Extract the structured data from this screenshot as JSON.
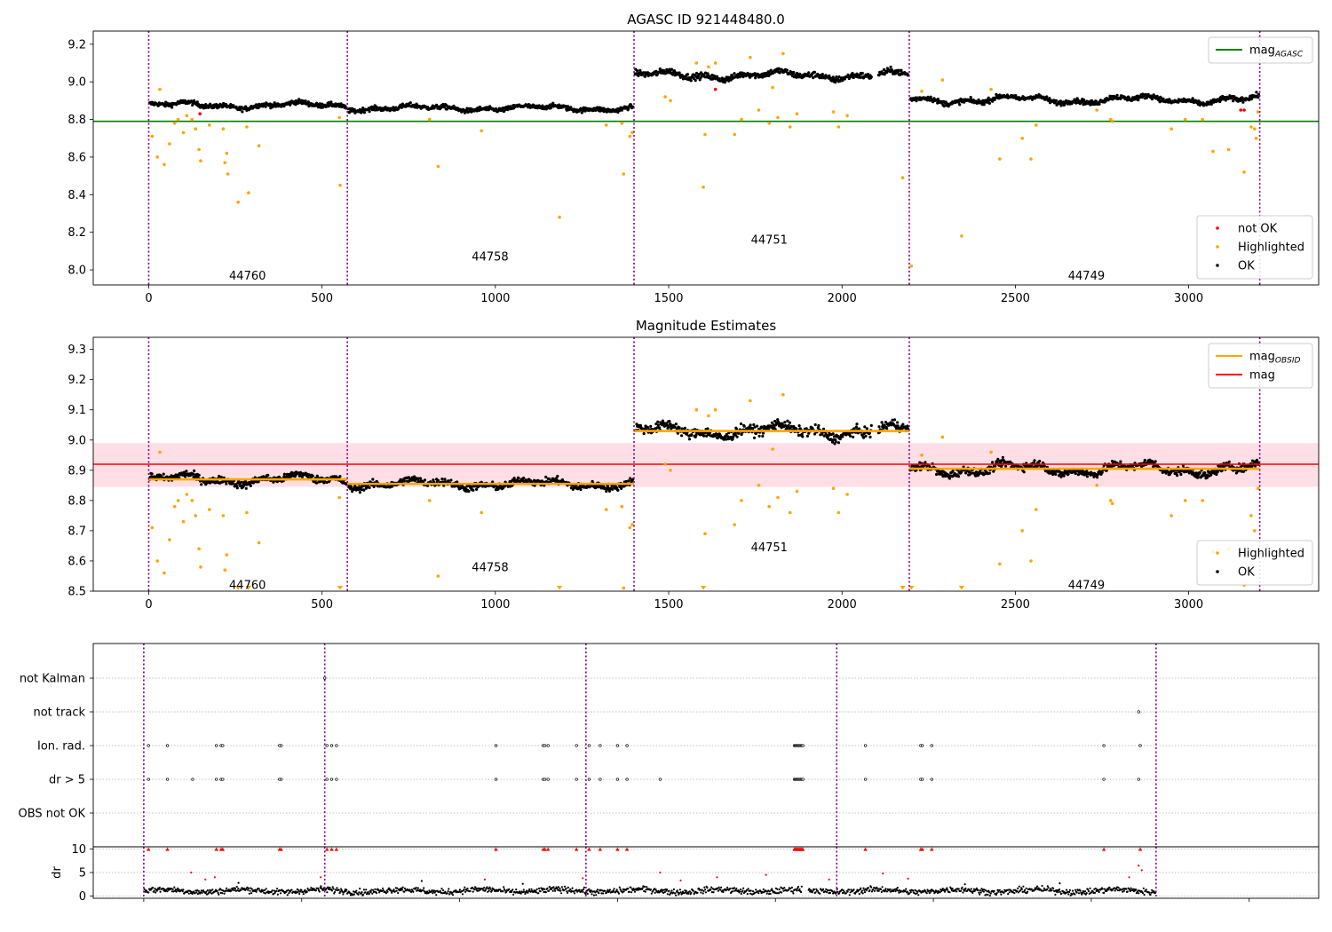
{
  "chart_data": [
    {
      "id": "p1",
      "type": "scatter",
      "title": "AGASC ID 921448480.0",
      "xlim": [
        -160,
        3375
      ],
      "ylim": [
        7.92,
        9.27
      ],
      "xticks": [
        0,
        500,
        1000,
        1500,
        2000,
        2500,
        3000,
        3500
      ],
      "yticks": [
        8.0,
        8.2,
        8.4,
        8.6,
        8.8,
        9.0,
        9.2
      ],
      "ytick_labels": [
        "8.0",
        "8.2",
        "8.4",
        "8.6",
        "8.8",
        "9.0",
        "9.2"
      ],
      "obs_boundaries": [
        0,
        573,
        1400,
        2194,
        3205
      ],
      "obsid_labels": [
        {
          "text": "44760",
          "x": 285,
          "y": 7.97
        },
        {
          "text": "44758",
          "x": 985,
          "y": 8.07
        },
        {
          "text": "44751",
          "x": 1790,
          "y": 8.16
        },
        {
          "text": "44749",
          "x": 2705,
          "y": 7.97
        }
      ],
      "ok_segments": [
        {
          "x0": 0,
          "x1": 573,
          "base": 8.875,
          "amp": 0.012,
          "noise": 0.012
        },
        {
          "x0": 573,
          "x1": 1400,
          "base": 8.86,
          "amp": 0.01,
          "noise": 0.012
        },
        {
          "x0": 1400,
          "x1": 2194,
          "base": 9.035,
          "amp": 0.015,
          "noise": 0.016
        },
        {
          "x0": 2194,
          "x1": 3205,
          "base": 8.905,
          "amp": 0.015,
          "noise": 0.013
        }
      ],
      "highlighted": [
        [
          10,
          8.71
        ],
        [
          25,
          8.6
        ],
        [
          32,
          8.96
        ],
        [
          45,
          8.56
        ],
        [
          60,
          8.67
        ],
        [
          75,
          8.78
        ],
        [
          85,
          8.8
        ],
        [
          100,
          8.73
        ],
        [
          110,
          8.82
        ],
        [
          125,
          8.8
        ],
        [
          135,
          8.75
        ],
        [
          145,
          8.64
        ],
        [
          150,
          8.58
        ],
        [
          175,
          8.77
        ],
        [
          215,
          8.75
        ],
        [
          220,
          8.57
        ],
        [
          225,
          8.62
        ],
        [
          228,
          8.51
        ],
        [
          258,
          8.36
        ],
        [
          283,
          8.76
        ],
        [
          288,
          8.41
        ],
        [
          318,
          8.66
        ],
        [
          550,
          8.81
        ],
        [
          552,
          8.45
        ],
        [
          810,
          8.8
        ],
        [
          835,
          8.55
        ],
        [
          960,
          8.74
        ],
        [
          1185,
          8.28
        ],
        [
          1320,
          8.77
        ],
        [
          1365,
          8.78
        ],
        [
          1370,
          8.51
        ],
        [
          1388,
          8.71
        ],
        [
          1395,
          8.73
        ],
        [
          1490,
          8.92
        ],
        [
          1505,
          8.9
        ],
        [
          1580,
          9.1
        ],
        [
          1600,
          8.44
        ],
        [
          1605,
          8.72
        ],
        [
          1615,
          9.08
        ],
        [
          1635,
          9.1
        ],
        [
          1690,
          8.72
        ],
        [
          1710,
          8.8
        ],
        [
          1735,
          9.13
        ],
        [
          1760,
          8.85
        ],
        [
          1790,
          8.78
        ],
        [
          1800,
          8.97
        ],
        [
          1815,
          8.81
        ],
        [
          1830,
          9.15
        ],
        [
          1850,
          8.76
        ],
        [
          1870,
          8.83
        ],
        [
          1975,
          8.84
        ],
        [
          1990,
          8.76
        ],
        [
          2015,
          8.82
        ],
        [
          2175,
          8.49
        ],
        [
          2200,
          8.02
        ],
        [
          2230,
          8.95
        ],
        [
          2290,
          9.01
        ],
        [
          2345,
          8.18
        ],
        [
          2430,
          8.96
        ],
        [
          2455,
          8.59
        ],
        [
          2520,
          8.7
        ],
        [
          2545,
          8.59
        ],
        [
          2560,
          8.77
        ],
        [
          2735,
          8.85
        ],
        [
          2775,
          8.8
        ],
        [
          2780,
          8.79
        ],
        [
          2950,
          8.75
        ],
        [
          2990,
          8.8
        ],
        [
          3040,
          8.8
        ],
        [
          3070,
          8.63
        ],
        [
          3115,
          8.64
        ],
        [
          3160,
          8.52
        ],
        [
          3180,
          8.76
        ],
        [
          3190,
          8.75
        ],
        [
          3195,
          8.7
        ],
        [
          3200,
          8.84
        ]
      ],
      "not_ok": [
        [
          148,
          8.83
        ],
        [
          1635,
          8.96
        ],
        [
          3150,
          8.85
        ],
        [
          3160,
          8.85
        ]
      ],
      "hlines": [
        {
          "name": "mag_AGASC",
          "y": 8.79,
          "x0": -160,
          "x1": 3375,
          "color": "#008000"
        }
      ],
      "legends": [
        {
          "position": "upper-right",
          "entries": [
            {
              "kind": "line",
              "color": "#008000",
              "text": "mag",
              "sub": "AGASC"
            }
          ]
        },
        {
          "position": "lower-right",
          "entries": [
            {
              "kind": "dot",
              "color": "#ff0000",
              "text": "not OK"
            },
            {
              "kind": "dot",
              "color": "#ffa500",
              "text": "Highlighted"
            },
            {
              "kind": "dot",
              "color": "#000000",
              "text": "OK"
            }
          ]
        }
      ]
    },
    {
      "id": "p2",
      "type": "scatter",
      "title": "Magnitude Estimates",
      "xlim": [
        -160,
        3375
      ],
      "ylim": [
        8.5,
        9.34
      ],
      "xticks": [
        0,
        500,
        1000,
        1500,
        2000,
        2500,
        3000,
        3500
      ],
      "yticks": [
        8.5,
        8.6,
        8.7,
        8.8,
        8.9,
        9.0,
        9.1,
        9.2,
        9.3
      ],
      "ytick_labels": [
        "8.5",
        "8.6",
        "8.7",
        "8.8",
        "8.9",
        "9.0",
        "9.1",
        "9.2",
        "9.3"
      ],
      "obs_boundaries": [
        0,
        573,
        1400,
        2194,
        3205
      ],
      "obsid_labels": [
        {
          "text": "44760",
          "x": 285,
          "y": 8.52
        },
        {
          "text": "44758",
          "x": 985,
          "y": 8.58
        },
        {
          "text": "44751",
          "x": 1790,
          "y": 8.645
        },
        {
          "text": "44749",
          "x": 2705,
          "y": 8.52
        }
      ],
      "band": {
        "y0": 8.845,
        "y1": 8.99,
        "x0": -160,
        "x1": 3375,
        "color": "#ffc0cb"
      },
      "ok_segments": [
        {
          "x0": 0,
          "x1": 573,
          "base": 8.87,
          "amp": 0.012,
          "noise": 0.012
        },
        {
          "x0": 573,
          "x1": 1400,
          "base": 8.855,
          "amp": 0.01,
          "noise": 0.012
        },
        {
          "x0": 1400,
          "x1": 2194,
          "base": 9.03,
          "amp": 0.015,
          "noise": 0.016
        },
        {
          "x0": 2194,
          "x1": 3205,
          "base": 8.905,
          "amp": 0.015,
          "noise": 0.013
        }
      ],
      "highlighted": [
        [
          10,
          8.71
        ],
        [
          25,
          8.6
        ],
        [
          32,
          8.96
        ],
        [
          45,
          8.56
        ],
        [
          60,
          8.67
        ],
        [
          75,
          8.78
        ],
        [
          85,
          8.8
        ],
        [
          100,
          8.73
        ],
        [
          110,
          8.82
        ],
        [
          125,
          8.8
        ],
        [
          135,
          8.75
        ],
        [
          145,
          8.64
        ],
        [
          150,
          8.58
        ],
        [
          175,
          8.77
        ],
        [
          215,
          8.75
        ],
        [
          220,
          8.57
        ],
        [
          225,
          8.62
        ],
        [
          283,
          8.76
        ],
        [
          318,
          8.66
        ],
        [
          550,
          8.81
        ],
        [
          810,
          8.8
        ],
        [
          835,
          8.55
        ],
        [
          960,
          8.76
        ],
        [
          1320,
          8.77
        ],
        [
          1365,
          8.78
        ],
        [
          1370,
          8.51
        ],
        [
          1388,
          8.71
        ],
        [
          1395,
          8.72
        ],
        [
          1490,
          8.92
        ],
        [
          1505,
          8.9
        ],
        [
          1580,
          9.1
        ],
        [
          1605,
          8.69
        ],
        [
          1615,
          9.08
        ],
        [
          1635,
          9.1
        ],
        [
          1690,
          8.72
        ],
        [
          1710,
          8.8
        ],
        [
          1735,
          9.13
        ],
        [
          1760,
          8.85
        ],
        [
          1790,
          8.78
        ],
        [
          1800,
          8.97
        ],
        [
          1815,
          8.81
        ],
        [
          1830,
          9.15
        ],
        [
          1850,
          8.76
        ],
        [
          1870,
          8.83
        ],
        [
          1975,
          8.84
        ],
        [
          1990,
          8.76
        ],
        [
          2015,
          8.82
        ],
        [
          2230,
          8.95
        ],
        [
          2290,
          9.01
        ],
        [
          2430,
          8.96
        ],
        [
          2455,
          8.59
        ],
        [
          2520,
          8.7
        ],
        [
          2545,
          8.6
        ],
        [
          2560,
          8.77
        ],
        [
          2735,
          8.85
        ],
        [
          2775,
          8.8
        ],
        [
          2780,
          8.79
        ],
        [
          2950,
          8.75
        ],
        [
          2990,
          8.8
        ],
        [
          3040,
          8.8
        ],
        [
          3070,
          8.63
        ],
        [
          3115,
          8.64
        ],
        [
          3160,
          8.52
        ],
        [
          3180,
          8.75
        ],
        [
          3190,
          8.7
        ],
        [
          3200,
          8.84
        ]
      ],
      "below_range_x": [
        258,
        288,
        552,
        1185,
        1600,
        2175,
        2200,
        2345
      ],
      "step_lines": [
        {
          "name": "mag_OBSID",
          "color": "#ffa500",
          "segments": [
            [
              0,
              573,
              8.87
            ],
            [
              573,
              1400,
              8.855
            ],
            [
              1400,
              2194,
              9.03
            ],
            [
              2194,
              3205,
              8.905
            ]
          ]
        }
      ],
      "hlines": [
        {
          "name": "mag",
          "y": 8.92,
          "x0": -160,
          "x1": 3375,
          "color": "#ff0000"
        }
      ],
      "legends": [
        {
          "position": "upper-right",
          "entries": [
            {
              "kind": "line",
              "color": "#ffa500",
              "text": "mag",
              "sub": "OBSID"
            },
            {
              "kind": "line",
              "color": "#ff0000",
              "text": "mag",
              "sub": ""
            }
          ]
        },
        {
          "position": "lower-right",
          "entries": [
            {
              "kind": "dot",
              "color": "#ffa500",
              "text": "Highlighted"
            },
            {
              "kind": "dot",
              "color": "#000000",
              "text": "OK"
            }
          ]
        }
      ]
    },
    {
      "id": "p3",
      "type": "scatter",
      "title": "",
      "xlim": [
        -160,
        3720
      ],
      "categories": [
        "not Kalman",
        "not track",
        "Ion. rad.",
        "dr > 5",
        "OBS not OK"
      ],
      "obs_boundaries": [
        0,
        573,
        1400,
        2194,
        3205
      ],
      "flags": {
        "not Kalman": [
          573
        ],
        "not track": [
          3150
        ],
        "Ion. rad.": [
          15,
          75,
          230,
          245,
          250,
          430,
          435,
          580,
          595,
          610,
          1115,
          1265,
          1270,
          1280,
          1370,
          1410,
          1445,
          1500,
          1530,
          2060,
          2063,
          2066,
          2069,
          2072,
          2075,
          2078,
          2081,
          2084,
          2087,
          2285,
          2460,
          2465,
          2495,
          3040,
          3155
        ],
        "dr > 5": [
          15,
          75,
          155,
          230,
          245,
          250,
          430,
          435,
          580,
          595,
          610,
          1115,
          1265,
          1270,
          1280,
          1370,
          1410,
          1445,
          1500,
          1530,
          1635,
          2060,
          2063,
          2066,
          2069,
          2072,
          2075,
          2078,
          2081,
          2084,
          2087,
          2285,
          2460,
          2465,
          2495,
          3040,
          3150
        ]
      }
    },
    {
      "id": "p4",
      "type": "scatter",
      "title": "",
      "ylabel": "dr",
      "xlim": [
        -160,
        3720
      ],
      "ylim": [
        -0.5,
        10.5
      ],
      "xticks": [
        0,
        500,
        1000,
        1500,
        2000,
        2500,
        3000,
        3500
      ],
      "yticks": [
        0,
        5,
        10
      ],
      "ytick_labels": [
        "0",
        "5",
        "10"
      ],
      "obs_boundaries": [
        0,
        573,
        1400,
        2194,
        3205
      ],
      "ok_baseline": {
        "x0": 0,
        "x1": 3205,
        "mean": 1.1,
        "spread": 0.9
      },
      "red_at_10": [
        15,
        75,
        230,
        245,
        250,
        430,
        435,
        580,
        595,
        610,
        1115,
        1265,
        1270,
        1280,
        1370,
        1410,
        1445,
        1500,
        1530,
        2060,
        2063,
        2066,
        2069,
        2072,
        2075,
        2078,
        2081,
        2084,
        2087,
        2285,
        2460,
        2465,
        2495,
        3040,
        3155
      ],
      "red_mid": [
        [
          150,
          5
        ],
        [
          195,
          3.5
        ],
        [
          225,
          4
        ],
        [
          560,
          4
        ],
        [
          1080,
          3.5
        ],
        [
          1390,
          3.8
        ],
        [
          1635,
          5
        ],
        [
          1700,
          3.3
        ],
        [
          1815,
          4
        ],
        [
          1970,
          4.5
        ],
        [
          2170,
          3.5
        ],
        [
          2340,
          4.8
        ],
        [
          2420,
          3.7
        ],
        [
          3120,
          4
        ],
        [
          3150,
          6.5
        ],
        [
          3160,
          5.5
        ]
      ],
      "black_mid": [
        [
          300,
          2.8
        ],
        [
          880,
          3.2
        ],
        [
          1200,
          2.6
        ],
        [
          2600,
          2.5
        ],
        [
          2900,
          2.7
        ]
      ]
    }
  ]
}
